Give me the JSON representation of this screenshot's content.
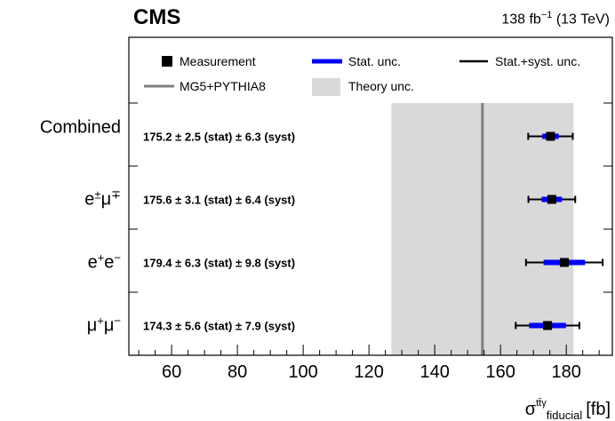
{
  "header": {
    "experiment": "CMS",
    "luminosity": "138 fb",
    "lumi_exp": "−1",
    "energy": "(13 TeV)"
  },
  "legend": {
    "measurement": "Measurement",
    "stat": "Stat. unc.",
    "statsyst": "Stat.+syst. unc.",
    "mc": "MG5+PYTHIA8",
    "theory": "Theory unc."
  },
  "chart_data": {
    "type": "scatter",
    "xlabel_main": "σ",
    "xlabel_sup": "tt̄γ",
    "xlabel_sub": "fiducial",
    "xlabel_unit": "[fb]",
    "xlim": [
      47,
      194
    ],
    "xticks": [
      60,
      80,
      100,
      120,
      140,
      160,
      180
    ],
    "categories": [
      "Combined",
      "e±μ∓",
      "e+e−",
      "μ+μ−"
    ],
    "category_display": [
      {
        "base": "Combined",
        "sup": ""
      },
      {
        "base": "e",
        "sup": "±",
        "base2": "μ",
        "sup2": "∓"
      },
      {
        "base": "e",
        "sup": "+",
        "base2": "e",
        "sup2": "−"
      },
      {
        "base": "μ",
        "sup": "+",
        "base2": "μ",
        "sup2": "−"
      }
    ],
    "values": [
      175.2,
      175.6,
      179.4,
      174.3
    ],
    "stat_unc": [
      2.5,
      3.1,
      6.3,
      5.6
    ],
    "syst_unc": [
      6.3,
      6.4,
      9.8,
      7.9
    ],
    "annotations": [
      "175.2  ±  2.5 (stat)  ±  6.3 (syst)",
      "175.6  ±  3.1 (stat)  ±  6.4 (syst)",
      "179.4  ±  6.3 (stat)  ±  9.8 (syst)",
      "174.3  ±  5.6 (stat)  ±  7.9 (syst)"
    ],
    "theory": {
      "central": 154.5,
      "band": [
        126.8,
        182.2
      ]
    },
    "colors": {
      "stat": "#0000ff",
      "statsyst": "#000000",
      "theory_band": "#d9d9d9",
      "theory_line": "#7f7f7f",
      "marker": "#000000"
    }
  }
}
